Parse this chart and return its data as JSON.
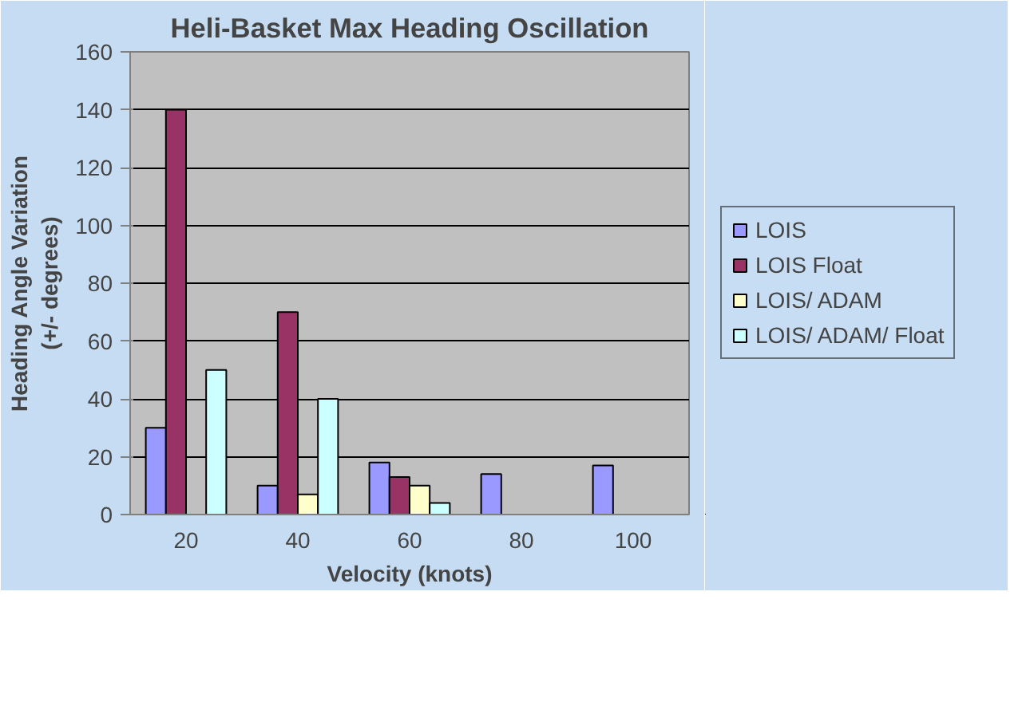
{
  "chart_data": {
    "type": "bar",
    "title": "Heli-Basket Max Heading Oscillation",
    "xlabel": "Velocity (knots)",
    "ylabel": "Heading Angle Variation\n(+/- degrees)",
    "categories": [
      "20",
      "40",
      "60",
      "80",
      "100"
    ],
    "series": [
      {
        "name": "LOIS",
        "color": "#9999ff",
        "values": [
          30,
          10,
          18,
          14,
          17
        ]
      },
      {
        "name": "LOIS Float",
        "color": "#993366",
        "values": [
          140,
          70,
          13,
          null,
          null
        ]
      },
      {
        "name": "LOIS/ ADAM",
        "color": "#ffffcc",
        "values": [
          null,
          7,
          10,
          null,
          null
        ]
      },
      {
        "name": "LOIS/ ADAM/ Float",
        "color": "#ccffff",
        "values": [
          50,
          40,
          4,
          null,
          null
        ]
      }
    ],
    "ylim": [
      0,
      160
    ],
    "yticks": [
      0,
      20,
      40,
      60,
      80,
      100,
      120,
      140,
      160
    ],
    "grid": "y",
    "legend": "right"
  }
}
